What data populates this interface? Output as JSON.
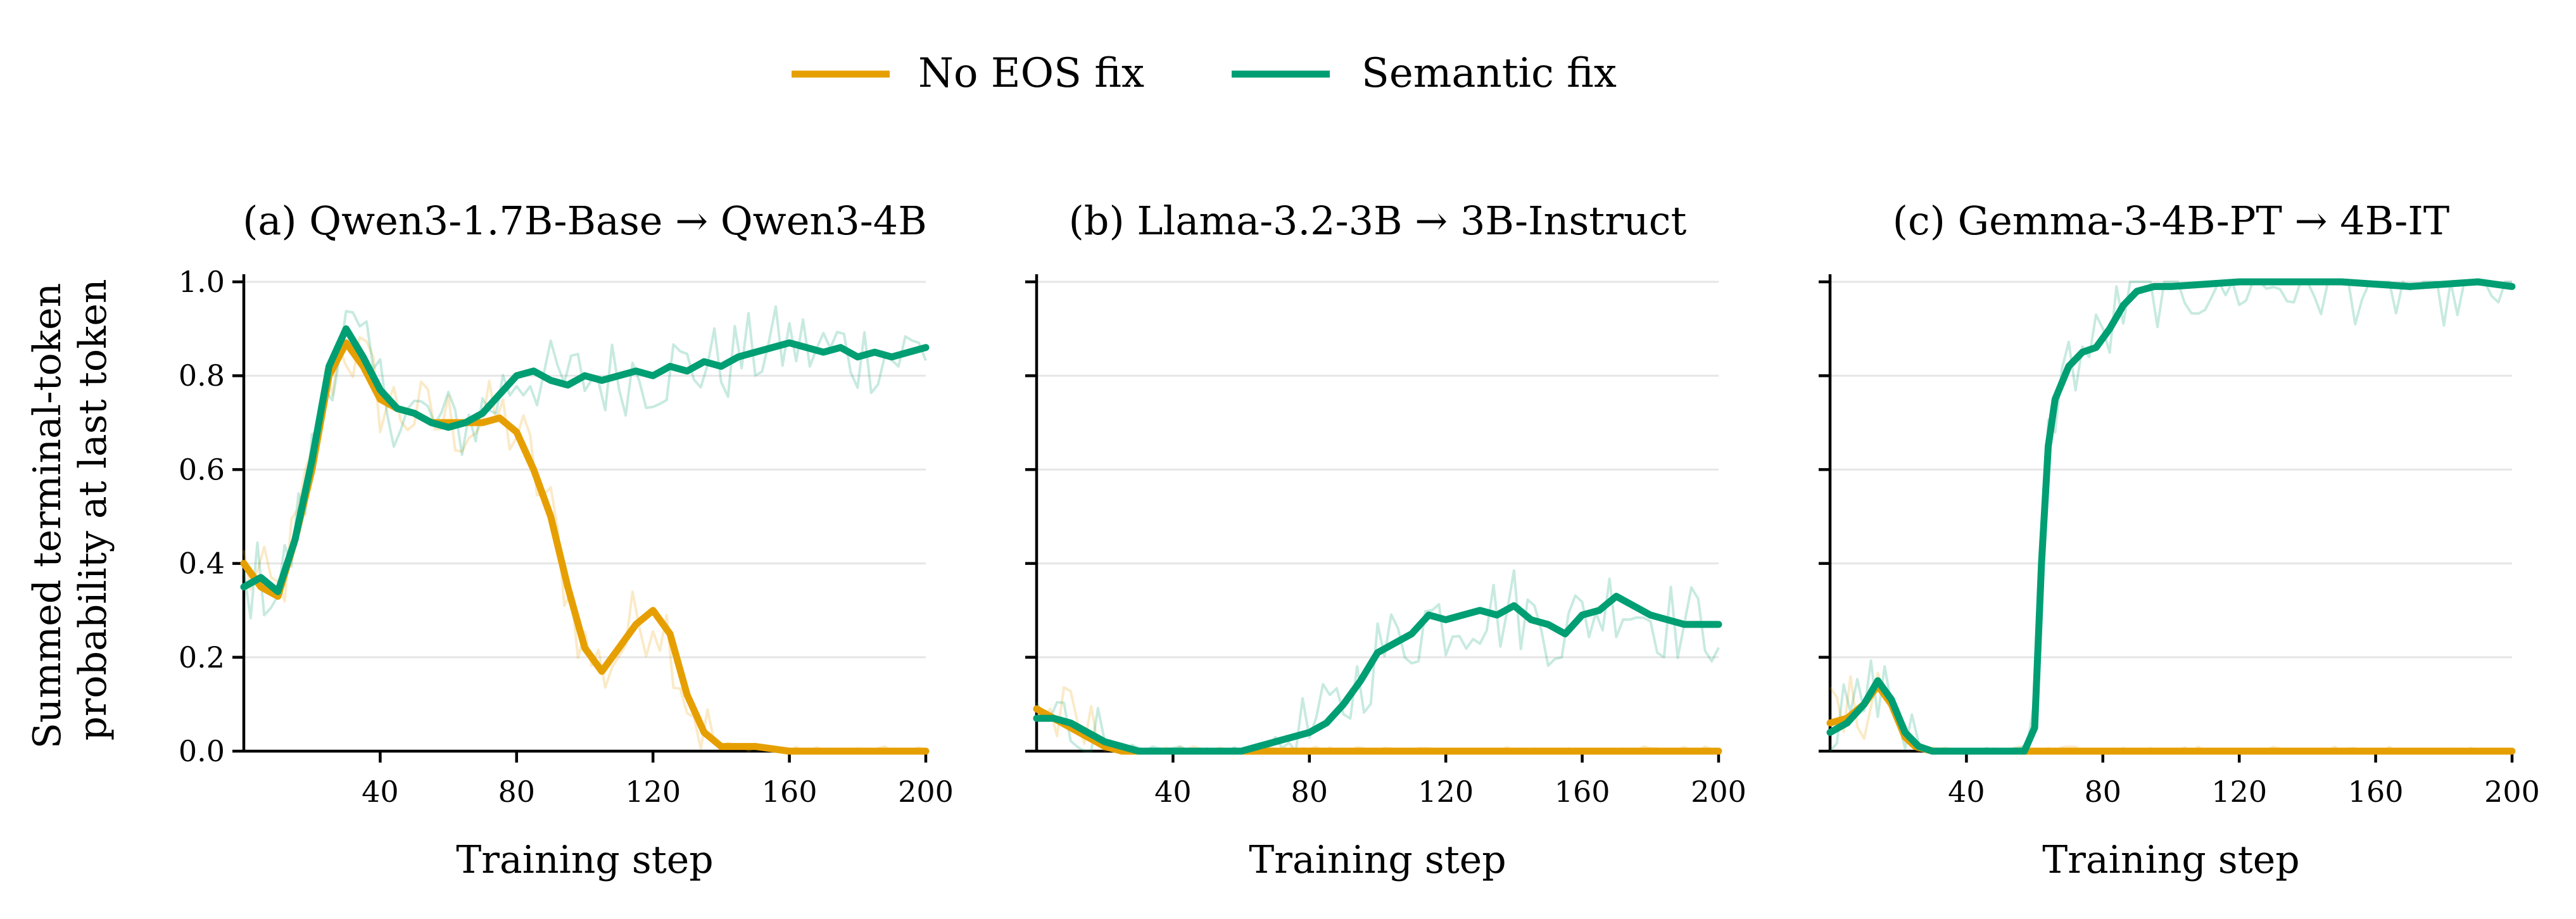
{
  "legend": [
    {
      "name": "No EOS fix",
      "color": "#E69F00"
    },
    {
      "name": "Semantic fix",
      "color": "#009E73"
    }
  ],
  "y_axis_label_lines": [
    "Summed terminal-token",
    "probability at last token"
  ],
  "x_axis_label": "Training step",
  "chart_data": [
    {
      "type": "line",
      "title": "(a) Qwen3-1.7B-Base → Qwen3-4B",
      "xlabel": "Training step",
      "ylabel": "Summed terminal-token probability at last token",
      "xlim": [
        0,
        200
      ],
      "ylim": [
        0,
        1.0
      ],
      "xticks": [
        40,
        80,
        120,
        160,
        200
      ],
      "yticks": [
        0.0,
        0.2,
        0.4,
        0.6,
        0.8,
        1.0
      ],
      "ytick_labels": [
        "0.0",
        "0.2",
        "0.4",
        "0.6",
        "0.8",
        "1.0"
      ],
      "grid": "horizontal",
      "series": [
        {
          "name": "No EOS fix",
          "color": "#E69F00",
          "points": [
            [
              0,
              0.4
            ],
            [
              5,
              0.35
            ],
            [
              10,
              0.33
            ],
            [
              15,
              0.45
            ],
            [
              20,
              0.6
            ],
            [
              25,
              0.8
            ],
            [
              30,
              0.87
            ],
            [
              35,
              0.82
            ],
            [
              40,
              0.75
            ],
            [
              45,
              0.73
            ],
            [
              50,
              0.72
            ],
            [
              55,
              0.7
            ],
            [
              60,
              0.7
            ],
            [
              65,
              0.7
            ],
            [
              70,
              0.7
            ],
            [
              75,
              0.71
            ],
            [
              80,
              0.68
            ],
            [
              85,
              0.6
            ],
            [
              90,
              0.5
            ],
            [
              95,
              0.35
            ],
            [
              100,
              0.22
            ],
            [
              105,
              0.17
            ],
            [
              110,
              0.22
            ],
            [
              115,
              0.27
            ],
            [
              120,
              0.3
            ],
            [
              125,
              0.25
            ],
            [
              130,
              0.12
            ],
            [
              135,
              0.04
            ],
            [
              140,
              0.01
            ],
            [
              150,
              0.01
            ],
            [
              160,
              0.0
            ],
            [
              200,
              0.0
            ]
          ]
        },
        {
          "name": "Semantic fix",
          "color": "#009E73",
          "points": [
            [
              0,
              0.35
            ],
            [
              5,
              0.37
            ],
            [
              10,
              0.34
            ],
            [
              15,
              0.45
            ],
            [
              20,
              0.62
            ],
            [
              25,
              0.82
            ],
            [
              30,
              0.9
            ],
            [
              35,
              0.84
            ],
            [
              40,
              0.77
            ],
            [
              45,
              0.73
            ],
            [
              50,
              0.72
            ],
            [
              55,
              0.7
            ],
            [
              60,
              0.69
            ],
            [
              65,
              0.7
            ],
            [
              70,
              0.72
            ],
            [
              75,
              0.76
            ],
            [
              80,
              0.8
            ],
            [
              85,
              0.81
            ],
            [
              90,
              0.79
            ],
            [
              95,
              0.78
            ],
            [
              100,
              0.8
            ],
            [
              105,
              0.79
            ],
            [
              110,
              0.8
            ],
            [
              115,
              0.81
            ],
            [
              120,
              0.8
            ],
            [
              125,
              0.82
            ],
            [
              130,
              0.81
            ],
            [
              135,
              0.83
            ],
            [
              140,
              0.82
            ],
            [
              145,
              0.84
            ],
            [
              150,
              0.85
            ],
            [
              155,
              0.86
            ],
            [
              160,
              0.87
            ],
            [
              165,
              0.86
            ],
            [
              170,
              0.85
            ],
            [
              175,
              0.86
            ],
            [
              180,
              0.84
            ],
            [
              185,
              0.85
            ],
            [
              190,
              0.84
            ],
            [
              195,
              0.85
            ],
            [
              200,
              0.86
            ]
          ]
        }
      ]
    },
    {
      "type": "line",
      "title": "(b) Llama-3.2-3B → 3B-Instruct",
      "xlabel": "Training step",
      "xlim": [
        0,
        200
      ],
      "ylim": [
        0,
        1.0
      ],
      "xticks": [
        40,
        80,
        120,
        160,
        200
      ],
      "yticks": [
        0.0,
        0.2,
        0.4,
        0.6,
        0.8,
        1.0
      ],
      "ytick_labels": [],
      "grid": "horizontal",
      "series": [
        {
          "name": "No EOS fix",
          "color": "#E69F00",
          "points": [
            [
              0,
              0.09
            ],
            [
              5,
              0.07
            ],
            [
              10,
              0.05
            ],
            [
              15,
              0.03
            ],
            [
              20,
              0.01
            ],
            [
              25,
              0.0
            ],
            [
              200,
              0.0
            ]
          ]
        },
        {
          "name": "Semantic fix",
          "color": "#009E73",
          "points": [
            [
              0,
              0.07
            ],
            [
              5,
              0.07
            ],
            [
              10,
              0.06
            ],
            [
              15,
              0.04
            ],
            [
              20,
              0.02
            ],
            [
              25,
              0.01
            ],
            [
              30,
              0.0
            ],
            [
              60,
              0.0
            ],
            [
              65,
              0.01
            ],
            [
              70,
              0.02
            ],
            [
              75,
              0.03
            ],
            [
              80,
              0.04
            ],
            [
              85,
              0.06
            ],
            [
              90,
              0.1
            ],
            [
              95,
              0.15
            ],
            [
              100,
              0.21
            ],
            [
              105,
              0.23
            ],
            [
              110,
              0.25
            ],
            [
              115,
              0.29
            ],
            [
              120,
              0.28
            ],
            [
              125,
              0.29
            ],
            [
              130,
              0.3
            ],
            [
              135,
              0.29
            ],
            [
              140,
              0.31
            ],
            [
              145,
              0.28
            ],
            [
              150,
              0.27
            ],
            [
              155,
              0.25
            ],
            [
              160,
              0.29
            ],
            [
              165,
              0.3
            ],
            [
              170,
              0.33
            ],
            [
              175,
              0.31
            ],
            [
              180,
              0.29
            ],
            [
              185,
              0.28
            ],
            [
              190,
              0.27
            ],
            [
              195,
              0.27
            ],
            [
              200,
              0.27
            ]
          ]
        }
      ]
    },
    {
      "type": "line",
      "title": "(c) Gemma-3-4B-PT → 4B-IT",
      "xlabel": "Training step",
      "xlim": [
        0,
        200
      ],
      "ylim": [
        0,
        1.0
      ],
      "xticks": [
        40,
        80,
        120,
        160,
        200
      ],
      "yticks": [
        0.0,
        0.2,
        0.4,
        0.6,
        0.8,
        1.0
      ],
      "ytick_labels": [],
      "grid": "horizontal",
      "series": [
        {
          "name": "No EOS fix",
          "color": "#E69F00",
          "points": [
            [
              0,
              0.06
            ],
            [
              5,
              0.07
            ],
            [
              10,
              0.1
            ],
            [
              14,
              0.14
            ],
            [
              18,
              0.1
            ],
            [
              22,
              0.03
            ],
            [
              25,
              0.01
            ],
            [
              30,
              0.0
            ],
            [
              200,
              0.0
            ]
          ]
        },
        {
          "name": "Semantic fix",
          "color": "#009E73",
          "points": [
            [
              0,
              0.04
            ],
            [
              5,
              0.06
            ],
            [
              10,
              0.1
            ],
            [
              14,
              0.15
            ],
            [
              18,
              0.11
            ],
            [
              22,
              0.04
            ],
            [
              26,
              0.01
            ],
            [
              30,
              0.0
            ],
            [
              57,
              0.0
            ],
            [
              60,
              0.05
            ],
            [
              62,
              0.4
            ],
            [
              64,
              0.65
            ],
            [
              66,
              0.75
            ],
            [
              70,
              0.82
            ],
            [
              74,
              0.85
            ],
            [
              78,
              0.86
            ],
            [
              82,
              0.9
            ],
            [
              86,
              0.95
            ],
            [
              90,
              0.98
            ],
            [
              95,
              0.99
            ],
            [
              100,
              0.99
            ],
            [
              120,
              1.0
            ],
            [
              150,
              1.0
            ],
            [
              170,
              0.99
            ],
            [
              190,
              1.0
            ],
            [
              200,
              0.99
            ]
          ]
        }
      ]
    }
  ]
}
